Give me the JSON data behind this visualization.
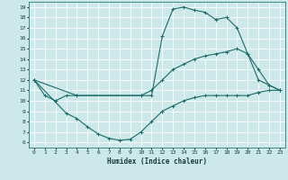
{
  "xlabel": "Humidex (Indice chaleur)",
  "bg_color": "#cce8e8",
  "grid_color": "#ffffff",
  "line_color": "#1a6b6b",
  "xlim": [
    -0.5,
    23.5
  ],
  "ylim": [
    5.5,
    19.5
  ],
  "xticks": [
    0,
    1,
    2,
    3,
    4,
    5,
    6,
    7,
    8,
    9,
    10,
    11,
    12,
    13,
    14,
    15,
    16,
    17,
    18,
    19,
    20,
    21,
    22,
    23
  ],
  "yticks": [
    6,
    7,
    8,
    9,
    10,
    11,
    12,
    13,
    14,
    15,
    16,
    17,
    18,
    19
  ],
  "line1_x": [
    0,
    1,
    2,
    3,
    4,
    10,
    11,
    12,
    13,
    14,
    15,
    16,
    17,
    18,
    19,
    20,
    21,
    22,
    23
  ],
  "line1_y": [
    12,
    10.5,
    10.0,
    10.5,
    10.5,
    10.5,
    10.5,
    16.2,
    18.8,
    19.0,
    18.7,
    18.5,
    17.8,
    18.0,
    17.0,
    14.5,
    12.0,
    11.5,
    11.0
  ],
  "line2_x": [
    0,
    4,
    10,
    11,
    12,
    13,
    14,
    15,
    16,
    17,
    18,
    19,
    20,
    21,
    22,
    23
  ],
  "line2_y": [
    12,
    10.5,
    10.5,
    11.0,
    12.0,
    13.0,
    13.5,
    14.0,
    14.3,
    14.5,
    14.7,
    15.0,
    14.5,
    13.0,
    11.5,
    11.0
  ],
  "line3_x": [
    0,
    3,
    4,
    5,
    6,
    7,
    8,
    9,
    10,
    11,
    12,
    13,
    14,
    15,
    16,
    17,
    18,
    19,
    20,
    21,
    22,
    23
  ],
  "line3_y": [
    12,
    8.8,
    8.3,
    7.5,
    6.8,
    6.4,
    6.2,
    6.3,
    7.0,
    8.0,
    9.0,
    9.5,
    10.0,
    10.3,
    10.5,
    10.5,
    10.5,
    10.5,
    10.5,
    10.8,
    11.0,
    11.0
  ]
}
